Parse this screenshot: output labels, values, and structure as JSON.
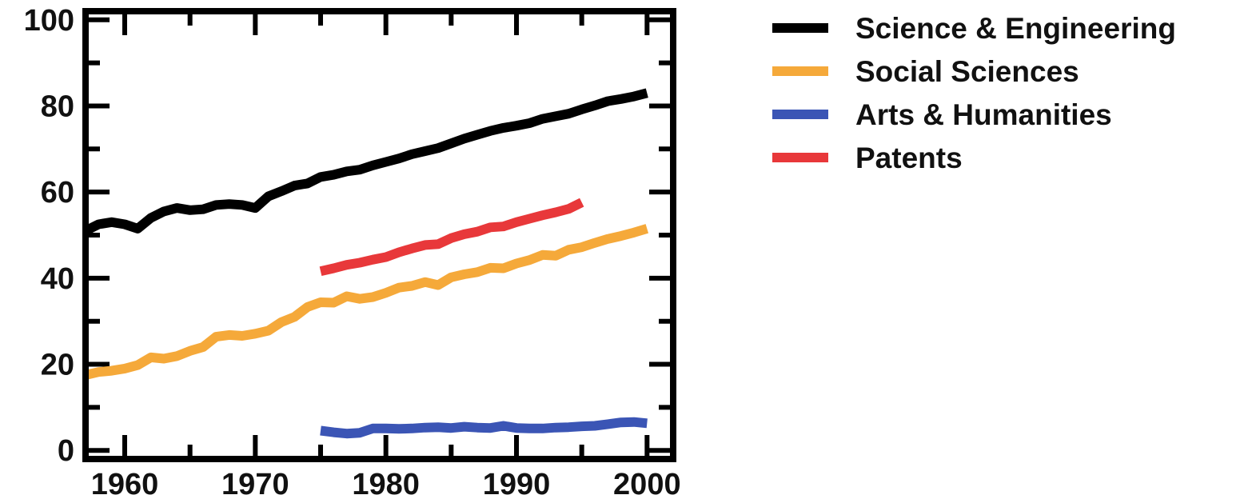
{
  "chart_data": {
    "type": "line",
    "title": "",
    "xlabel": "",
    "ylabel": "",
    "xlim": [
      1957,
      2002
    ],
    "ylim": [
      -2,
      102
    ],
    "x_ticks": [
      "1960",
      "1970",
      "1980",
      "1990",
      "2000"
    ],
    "y_ticks": [
      "0",
      "20",
      "40",
      "60",
      "80",
      "100"
    ],
    "legend_position": "right",
    "grid": false,
    "series": [
      {
        "name": "Science & Engineering",
        "color": "#000000",
        "x": [
          1957,
          1958,
          1959,
          1960,
          1961,
          1962,
          1963,
          1964,
          1965,
          1966,
          1967,
          1968,
          1969,
          1970,
          1971,
          1972,
          1973,
          1974,
          1975,
          1976,
          1977,
          1978,
          1979,
          1980,
          1981,
          1982,
          1983,
          1984,
          1985,
          1986,
          1987,
          1988,
          1989,
          1990,
          1991,
          1992,
          1993,
          1994,
          1995,
          1996,
          1997,
          1998,
          1999,
          2000
        ],
        "y": [
          51,
          52.5,
          53,
          52.5,
          51.5,
          54,
          55.5,
          56.3,
          55.8,
          56,
          57,
          57.2,
          57,
          56.3,
          59,
          60.2,
          61.5,
          62,
          63.5,
          64,
          64.8,
          65.2,
          66.2,
          67,
          67.8,
          68.8,
          69.5,
          70.2,
          71.3,
          72.4,
          73.3,
          74.2,
          74.9,
          75.4,
          76,
          77,
          77.6,
          78.2,
          79.2,
          80.1,
          81.1,
          81.6,
          82.2,
          83
        ]
      },
      {
        "name": "Social Sciences",
        "color": "#f5a93a",
        "x": [
          1957,
          1958,
          1959,
          1960,
          1961,
          1962,
          1963,
          1964,
          1965,
          1966,
          1967,
          1968,
          1969,
          1970,
          1971,
          1972,
          1973,
          1974,
          1975,
          1976,
          1977,
          1978,
          1979,
          1980,
          1981,
          1982,
          1983,
          1984,
          1985,
          1986,
          1987,
          1988,
          1989,
          1990,
          1991,
          1992,
          1993,
          1994,
          1995,
          1996,
          1997,
          1998,
          1999,
          2000
        ],
        "y": [
          17.5,
          18.2,
          18.5,
          19,
          19.8,
          21.6,
          21.3,
          21.9,
          23.1,
          24,
          26.4,
          26.8,
          26.6,
          27.1,
          27.8,
          29.8,
          31,
          33.3,
          34.4,
          34.3,
          35.8,
          35.2,
          35.6,
          36.6,
          37.8,
          38.2,
          39.1,
          38.4,
          40.2,
          40.9,
          41.4,
          42.4,
          42.3,
          43.4,
          44.2,
          45.4,
          45.2,
          46.6,
          47.2,
          48.2,
          49.1,
          49.8,
          50.6,
          51.5
        ]
      },
      {
        "name": "Arts & Humanities",
        "color": "#3b55b5",
        "x": [
          1975,
          1976,
          1977,
          1978,
          1979,
          1980,
          1981,
          1982,
          1983,
          1984,
          1985,
          1986,
          1987,
          1988,
          1989,
          1990,
          1991,
          1992,
          1993,
          1994,
          1995,
          1996,
          1997,
          1998,
          1999,
          2000
        ],
        "y": [
          4.6,
          4.2,
          3.9,
          4.1,
          5.1,
          5.1,
          5,
          5.1,
          5.3,
          5.4,
          5.2,
          5.5,
          5.3,
          5.2,
          5.7,
          5.2,
          5.1,
          5.1,
          5.3,
          5.4,
          5.6,
          5.7,
          6.1,
          6.5,
          6.6,
          6.3
        ]
      },
      {
        "name": "Patents",
        "color": "#e8383a",
        "x": [
          1975,
          1976,
          1977,
          1978,
          1979,
          1980,
          1981,
          1982,
          1983,
          1984,
          1985,
          1986,
          1987,
          1988,
          1989,
          1990,
          1991,
          1992,
          1993,
          1994,
          1995
        ],
        "y": [
          41.6,
          42.3,
          43.1,
          43.6,
          44.3,
          44.9,
          46,
          46.9,
          47.7,
          47.9,
          49.3,
          50.2,
          50.8,
          51.8,
          52,
          53,
          53.8,
          54.6,
          55.3,
          56.1,
          57.6
        ]
      }
    ]
  }
}
